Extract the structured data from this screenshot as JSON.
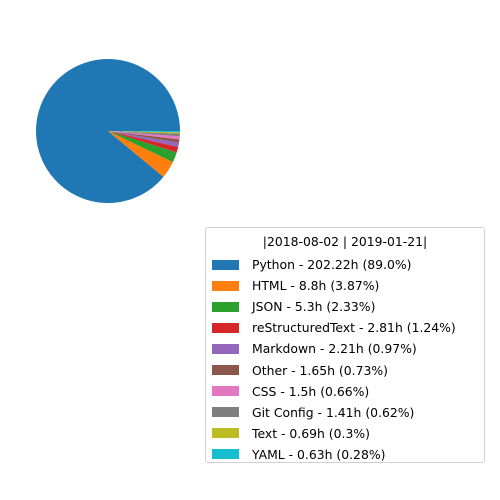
{
  "chart_data": {
    "type": "pie",
    "legend_title": "|2018-08-02 | 2019-01-21|",
    "legend_placement": "lower-right",
    "slices": [
      {
        "label": "Python - 202.22h (89.0%)",
        "name": "Python",
        "value": 202.22,
        "percent": 89.0,
        "color": "#1f77b4"
      },
      {
        "label": "HTML - 8.8h (3.87%)",
        "name": "HTML",
        "value": 8.8,
        "percent": 3.87,
        "color": "#ff7f0e"
      },
      {
        "label": "JSON - 5.3h (2.33%)",
        "name": "JSON",
        "value": 5.3,
        "percent": 2.33,
        "color": "#2ca02c"
      },
      {
        "label": "reStructuredText - 2.81h (1.24%)",
        "name": "reStructuredText",
        "value": 2.81,
        "percent": 1.24,
        "color": "#d62728"
      },
      {
        "label": "Markdown - 2.21h (0.97%)",
        "name": "Markdown",
        "value": 2.21,
        "percent": 0.97,
        "color": "#9467bd"
      },
      {
        "label": "Other - 1.65h (0.73%)",
        "name": "Other",
        "value": 1.65,
        "percent": 0.73,
        "color": "#8c564b"
      },
      {
        "label": "CSS - 1.5h (0.66%)",
        "name": "CSS",
        "value": 1.5,
        "percent": 0.66,
        "color": "#e377c2"
      },
      {
        "label": "Git Config - 1.41h (0.62%)",
        "name": "Git Config",
        "value": 1.41,
        "percent": 0.62,
        "color": "#7f7f7f"
      },
      {
        "label": "Text - 0.69h (0.3%)",
        "name": "Text",
        "value": 0.69,
        "percent": 0.3,
        "color": "#bcbd22"
      },
      {
        "label": "YAML - 0.63h (0.28%)",
        "name": "YAML",
        "value": 0.63,
        "percent": 0.28,
        "color": "#17becf"
      }
    ]
  }
}
